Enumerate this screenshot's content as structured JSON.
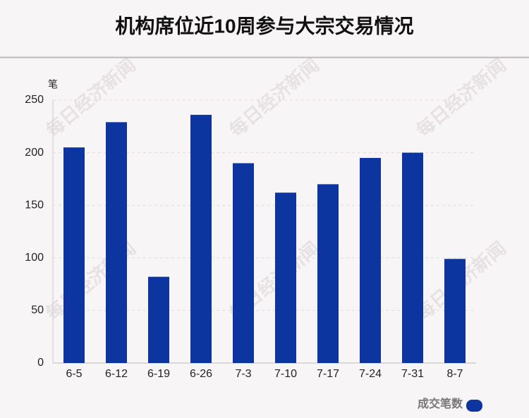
{
  "chart_data": {
    "type": "bar",
    "title": "机构席位近10周参与大宗交易情况",
    "y_label": "笔",
    "watermark": "每日经济新闻",
    "categories": [
      "6-5",
      "6-12",
      "6-19",
      "6-26",
      "7-3",
      "7-10",
      "7-17",
      "7-24",
      "7-31",
      "8-7"
    ],
    "series": [
      {
        "name": "成交笔数",
        "color": "#0d35a0",
        "values": [
          205,
          229,
          82,
          236,
          190,
          162,
          170,
          195,
          200,
          99
        ]
      }
    ],
    "ylim": [
      0,
      250
    ],
    "yticks": [
      0,
      50,
      100,
      150,
      200,
      250
    ],
    "grid": true,
    "legend": "bottom-right"
  }
}
